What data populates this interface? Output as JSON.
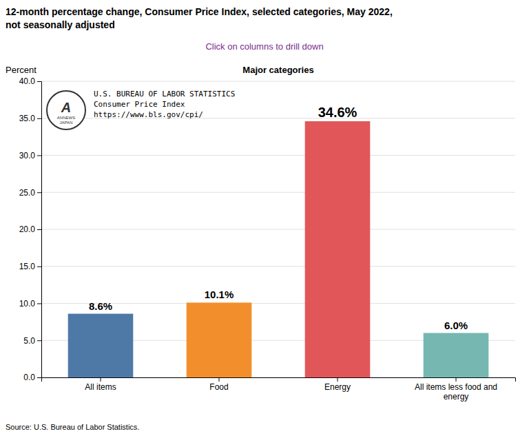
{
  "chart_data": {
    "type": "bar",
    "title": "12-month percentage change, Consumer Price Index, selected categories, May 2022,\nnot seasonally adjusted",
    "subtitle": "Click on columns to drill down",
    "x_label": "Major categories",
    "y_label": "Percent",
    "categories": [
      "All items",
      "Food",
      "Energy",
      "All items less food and\nenergy"
    ],
    "values": [
      8.6,
      10.1,
      34.6,
      6.0
    ],
    "value_labels": [
      "8.6%",
      "10.1%",
      "34.6%",
      "6.0%"
    ],
    "data_labels": true,
    "ylim": [
      0,
      40
    ],
    "yticks": [
      {
        "value": 0,
        "label": "0.0"
      },
      {
        "value": 5,
        "label": "5.0"
      },
      {
        "value": 10,
        "label": "10.0"
      },
      {
        "value": 15,
        "label": "15.0"
      },
      {
        "value": 20,
        "label": "20.0"
      },
      {
        "value": 25,
        "label": "25.0"
      },
      {
        "value": 30,
        "label": "30.0"
      },
      {
        "value": 35,
        "label": "35.0"
      },
      {
        "value": 40,
        "label": "40.0"
      }
    ],
    "grid": true,
    "annotations": [
      "U.S. BUREAU OF LABOR STATISTICS",
      "Consumer Price Index",
      "https://www.bls.gov/cpi/"
    ],
    "logo": {
      "letter": "A",
      "label": "ANNEWS\nJAPAN"
    },
    "source": "Source: U.S. Bureau of Labor Statistics."
  }
}
